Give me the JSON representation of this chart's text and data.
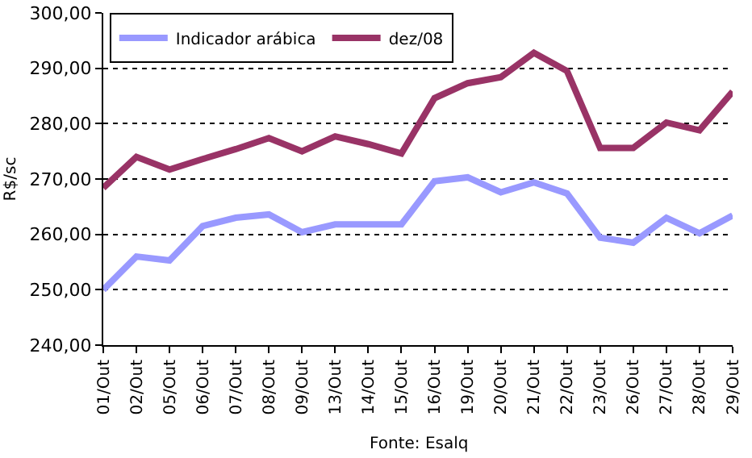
{
  "chart_data": {
    "type": "line",
    "ylabel": "R$/sc",
    "categories": [
      "01/Out",
      "02/Out",
      "05/Out",
      "06/Out",
      "07/Out",
      "08/Out",
      "09/Out",
      "13/Out",
      "14/Out",
      "15/Out",
      "16/Out",
      "19/Out",
      "20/Out",
      "21/Out",
      "22/Out",
      "23/Out",
      "26/Out",
      "27/Out",
      "28/Out",
      "29/Out"
    ],
    "series": [
      {
        "name": "Indicador arábica",
        "color": "#9999ff",
        "values": [
          250.0,
          256.0,
          255.3,
          261.5,
          263.0,
          263.6,
          260.4,
          261.8,
          261.8,
          261.8,
          269.6,
          270.3,
          267.6,
          269.4,
          267.4,
          259.4,
          258.5,
          263.0,
          260.2,
          263.4
        ]
      },
      {
        "name": "dez/08",
        "color": "#993366",
        "values": [
          268.4,
          274.0,
          271.7,
          273.6,
          275.4,
          277.4,
          275.0,
          277.7,
          276.3,
          274.6,
          284.6,
          287.3,
          288.4,
          292.8,
          289.5,
          275.6,
          275.6,
          280.2,
          278.8,
          285.8
        ]
      }
    ],
    "ylim": [
      240,
      300
    ],
    "yticks": [
      {
        "value": 240,
        "label": "240,00"
      },
      {
        "value": 250,
        "label": "250,00"
      },
      {
        "value": 260,
        "label": "260,00"
      },
      {
        "value": 270,
        "label": "270,00"
      },
      {
        "value": 280,
        "label": "280,00"
      },
      {
        "value": 290,
        "label": "290,00"
      },
      {
        "value": 300,
        "label": "300,00"
      }
    ],
    "grid": "y",
    "legend": "top left",
    "line_style": "solid",
    "marker": "none",
    "annotations": [
      "Fonte: Esalq"
    ]
  }
}
